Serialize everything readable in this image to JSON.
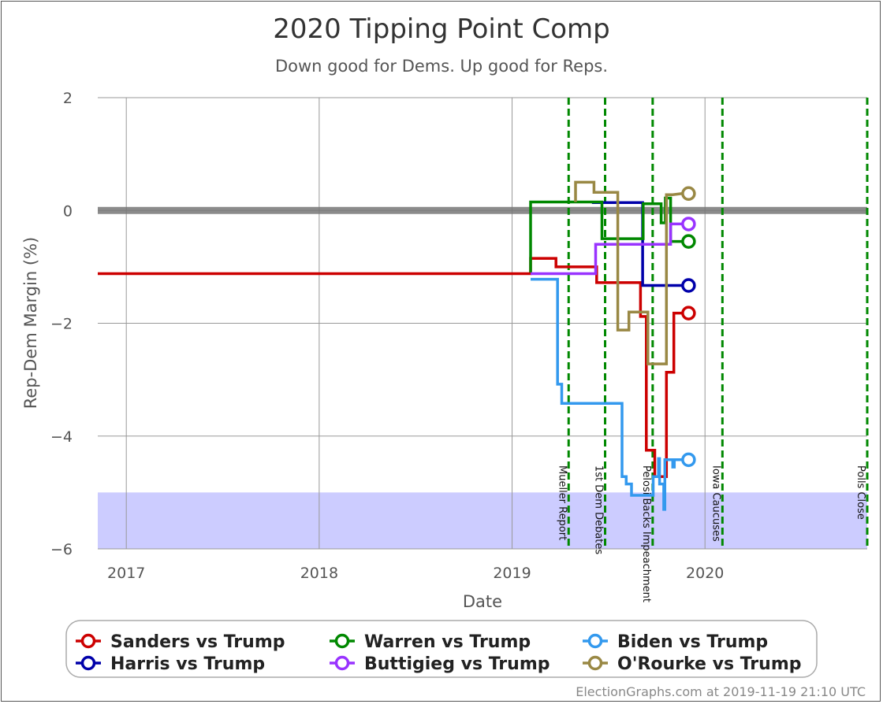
{
  "chart_data": {
    "type": "line",
    "title": "2020 Tipping Point Comp",
    "subtitle": "Down good for Dems. Up good for Reps.",
    "xlabel": "Date",
    "ylabel": "Rep-Dem Margin (%)",
    "xlim": [
      "2016-11-08",
      "2020-11-03"
    ],
    "ylim": [
      -6,
      2
    ],
    "xticks": [
      {
        "date": "2017-01-01",
        "label": "2017"
      },
      {
        "date": "2018-01-01",
        "label": "2018"
      },
      {
        "date": "2019-01-01",
        "label": "2019"
      },
      {
        "date": "2020-01-01",
        "label": "2020"
      }
    ],
    "yticks": [
      {
        "value": 2,
        "label": "2"
      },
      {
        "value": 0,
        "label": "0"
      },
      {
        "value": -2,
        "label": "−2"
      },
      {
        "value": -4,
        "label": "−4"
      },
      {
        "value": -6,
        "label": "−6"
      }
    ],
    "grid": true,
    "zero_line": 0,
    "shaded_band": {
      "from": -6,
      "to": -5,
      "color": "#ccccff"
    },
    "events": [
      {
        "date": "2019-04-18",
        "label": "Mueller Report"
      },
      {
        "date": "2019-06-26",
        "label": "1st Dem Debates"
      },
      {
        "date": "2019-09-24",
        "label": "Pelosi Backs Impeachment"
      },
      {
        "date": "2020-02-03",
        "label": "Iowa Caucuses"
      },
      {
        "date": "2020-11-03",
        "label": "Polls Close"
      }
    ],
    "series": [
      {
        "name": "Sanders vs Trump",
        "color": "#cc0000",
        "points": [
          [
            "2016-11-08",
            -1.12
          ],
          [
            "2019-02-05",
            -1.12
          ],
          [
            "2019-02-05",
            -0.85
          ],
          [
            "2019-03-25",
            -0.85
          ],
          [
            "2019-03-25",
            -1.0
          ],
          [
            "2019-06-10",
            -1.0
          ],
          [
            "2019-06-10",
            -1.28
          ],
          [
            "2019-09-01",
            -1.28
          ],
          [
            "2019-09-01",
            -1.88
          ],
          [
            "2019-09-12",
            -1.88
          ],
          [
            "2019-09-12",
            -4.25
          ],
          [
            "2019-09-28",
            -4.25
          ],
          [
            "2019-09-28",
            -4.72
          ],
          [
            "2019-10-20",
            -4.72
          ],
          [
            "2019-10-20",
            -2.87
          ],
          [
            "2019-11-03",
            -2.87
          ],
          [
            "2019-11-03",
            -1.82
          ],
          [
            "2019-11-19",
            -1.82
          ]
        ]
      },
      {
        "name": "Harris vs Trump",
        "color": "#0000aa",
        "points": [
          [
            "2019-06-01",
            0.14
          ],
          [
            "2019-09-05",
            0.14
          ],
          [
            "2019-09-05",
            -1.33
          ],
          [
            "2019-11-19",
            -1.33
          ]
        ]
      },
      {
        "name": "Warren vs Trump",
        "color": "#008800",
        "points": [
          [
            "2019-02-05",
            -1.1
          ],
          [
            "2019-02-05",
            0.15
          ],
          [
            "2019-06-20",
            0.15
          ],
          [
            "2019-06-20",
            -0.5
          ],
          [
            "2019-09-06",
            -0.5
          ],
          [
            "2019-09-06",
            0.12
          ],
          [
            "2019-10-10",
            0.12
          ],
          [
            "2019-10-10",
            -0.22
          ],
          [
            "2019-10-18",
            -0.22
          ],
          [
            "2019-10-18",
            0.22
          ],
          [
            "2019-10-28",
            0.22
          ],
          [
            "2019-10-28",
            -0.55
          ],
          [
            "2019-11-19",
            -0.55
          ]
        ]
      },
      {
        "name": "Buttigieg vs Trump",
        "color": "#9933ff",
        "points": [
          [
            "2019-02-05",
            -1.12
          ],
          [
            "2019-06-08",
            -1.12
          ],
          [
            "2019-06-08",
            -0.6
          ],
          [
            "2019-10-28",
            -0.6
          ],
          [
            "2019-10-28",
            -0.24
          ],
          [
            "2019-11-19",
            -0.24
          ]
        ]
      },
      {
        "name": "Biden vs Trump",
        "color": "#3399ee",
        "points": [
          [
            "2019-02-05",
            -1.22
          ],
          [
            "2019-03-28",
            -1.22
          ],
          [
            "2019-03-28",
            -3.08
          ],
          [
            "2019-04-05",
            -3.08
          ],
          [
            "2019-04-05",
            -3.42
          ],
          [
            "2019-07-28",
            -3.42
          ],
          [
            "2019-07-28",
            -4.72
          ],
          [
            "2019-08-05",
            -4.72
          ],
          [
            "2019-08-05",
            -4.85
          ],
          [
            "2019-08-15",
            -4.85
          ],
          [
            "2019-08-15",
            -5.05
          ],
          [
            "2019-09-25",
            -5.05
          ],
          [
            "2019-09-25",
            -4.72
          ],
          [
            "2019-10-05",
            -4.72
          ],
          [
            "2019-10-05",
            -4.4
          ],
          [
            "2019-10-07",
            -4.4
          ],
          [
            "2019-10-07",
            -4.85
          ],
          [
            "2019-10-15",
            -4.85
          ],
          [
            "2019-10-15",
            -5.3
          ],
          [
            "2019-10-17",
            -5.3
          ],
          [
            "2019-10-17",
            -4.42
          ],
          [
            "2019-11-01",
            -4.42
          ],
          [
            "2019-11-01",
            -4.55
          ],
          [
            "2019-11-04",
            -4.55
          ],
          [
            "2019-11-04",
            -4.42
          ],
          [
            "2019-11-19",
            -4.42
          ]
        ]
      },
      {
        "name": "O'Rourke vs Trump",
        "color": "#998844",
        "points": [
          [
            "2019-05-01",
            0.15
          ],
          [
            "2019-05-01",
            0.5
          ],
          [
            "2019-06-05",
            0.5
          ],
          [
            "2019-06-05",
            0.32
          ],
          [
            "2019-07-20",
            0.32
          ],
          [
            "2019-07-20",
            -2.12
          ],
          [
            "2019-08-10",
            -2.12
          ],
          [
            "2019-08-10",
            -1.8
          ],
          [
            "2019-09-15",
            -1.8
          ],
          [
            "2019-09-15",
            -2.72
          ],
          [
            "2019-10-20",
            -2.72
          ],
          [
            "2019-10-20",
            0.28
          ],
          [
            "2019-11-01",
            0.28
          ],
          [
            "2019-11-19",
            0.3
          ]
        ]
      }
    ],
    "legend": {
      "position": "bottom",
      "items": [
        "Sanders vs Trump",
        "Warren vs Trump",
        "Biden vs Trump",
        "Harris vs Trump",
        "Buttigieg vs Trump",
        "O'Rourke vs Trump"
      ]
    }
  },
  "credit": "ElectionGraphs.com at 2019-11-19 21:10 UTC"
}
